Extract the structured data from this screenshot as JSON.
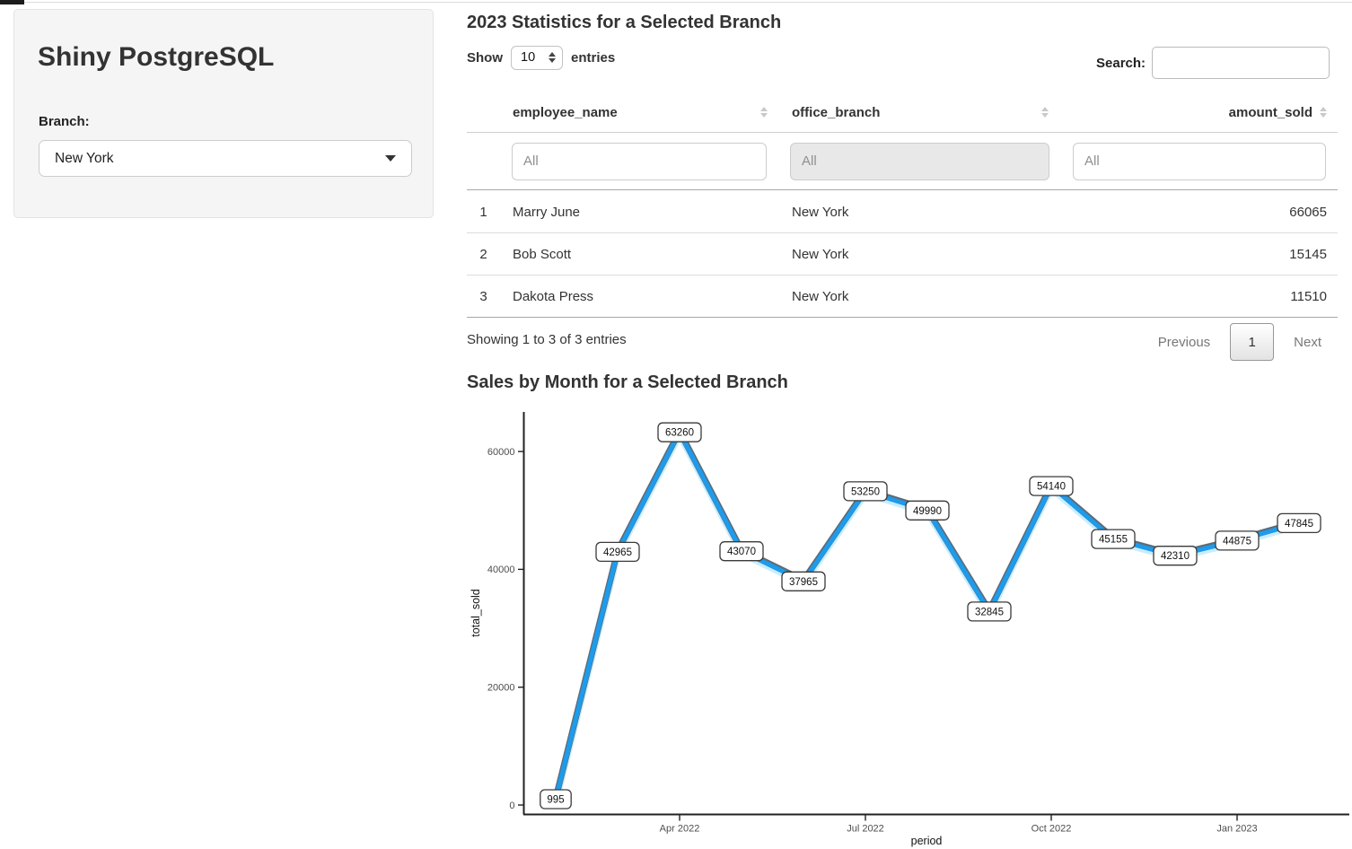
{
  "sidebar": {
    "title": "Shiny PostgreSQL",
    "branch_label": "Branch:",
    "branch_value": "New York"
  },
  "table_section": {
    "title": "2023 Statistics for a Selected Branch",
    "show_label": "Show",
    "page_length": "10",
    "entries_label": "entries",
    "search_label": "Search:",
    "search_value": "",
    "columns": [
      {
        "label": "employee_name",
        "filter_placeholder": "All"
      },
      {
        "label": "office_branch",
        "filter_placeholder": "All"
      },
      {
        "label": "amount_sold",
        "filter_placeholder": "All"
      }
    ],
    "rows": [
      {
        "index": "1",
        "employee_name": "Marry June",
        "office_branch": "New York",
        "amount_sold": "66065"
      },
      {
        "index": "2",
        "employee_name": "Bob Scott",
        "office_branch": "New York",
        "amount_sold": "15145"
      },
      {
        "index": "3",
        "employee_name": "Dakota Press",
        "office_branch": "New York",
        "amount_sold": "11510"
      }
    ],
    "info": "Showing 1 to 3 of 3 entries",
    "pagination": {
      "previous": "Previous",
      "current": "1",
      "next": "Next"
    }
  },
  "chart_section": {
    "title": "Sales by Month for a Selected Branch"
  },
  "chart_data": {
    "type": "line",
    "title": "Sales by Month for a Selected Branch",
    "xlabel": "period",
    "ylabel": "total_sold",
    "x": [
      "Feb 2022",
      "Mar 2022",
      "Apr 2022",
      "May 2022",
      "Jun 2022",
      "Jul 2022",
      "Aug 2022",
      "Sep 2022",
      "Oct 2022",
      "Nov 2022",
      "Dec 2022",
      "Jan 2023",
      "Feb 2023"
    ],
    "values": [
      995,
      42965,
      63260,
      43070,
      37965,
      53250,
      49990,
      32845,
      54140,
      45155,
      42310,
      44875,
      47845
    ],
    "point_labels_shown": true,
    "x_ticks": [
      {
        "index": 2,
        "label": "Apr 2022"
      },
      {
        "index": 5,
        "label": "Jul 2022"
      },
      {
        "index": 8,
        "label": "Oct 2022"
      },
      {
        "index": 11,
        "label": "Jan 2023"
      }
    ],
    "y_ticks": [
      0,
      20000,
      40000,
      60000
    ],
    "ylim": [
      0,
      66700
    ],
    "grid": false,
    "legend": false,
    "line_color": "#1e9beb",
    "line_shadow_color": "#5d6b77",
    "line_glow_color": "#c2ebff",
    "axis_color": "#222222",
    "axis_text_color": "#4d4d4d",
    "label_box_fill": "#ffffff",
    "label_box_border": "#3a3a3a"
  }
}
